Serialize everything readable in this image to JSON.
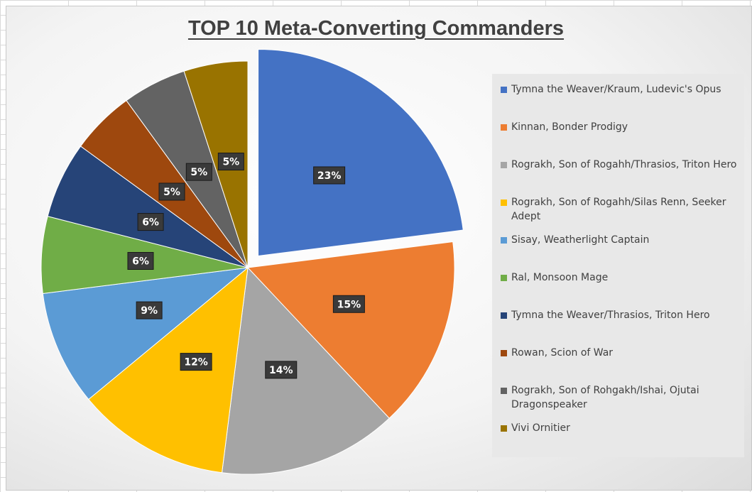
{
  "chart_data": {
    "type": "pie",
    "title": "TOP 10 Meta-Converting Commanders",
    "slices": [
      {
        "label": "Tymna the Weaver/Kraum, Ludevic's Opus",
        "value": 23,
        "display": "23%",
        "color": "#4472C4",
        "exploded": true
      },
      {
        "label": "Kinnan, Bonder Prodigy",
        "value": 15,
        "display": "15%",
        "color": "#ED7D31"
      },
      {
        "label": "Rograkh, Son of Rogahh/Thrasios, Triton Hero",
        "value": 14,
        "display": "14%",
        "color": "#A5A5A5"
      },
      {
        "label": "Rograkh, Son of Rogahh/Silas Renn, Seeker Adept",
        "value": 12,
        "display": "12%",
        "color": "#FFC000"
      },
      {
        "label": "Sisay, Weatherlight Captain",
        "value": 9,
        "display": "9%",
        "color": "#5B9BD5"
      },
      {
        "label": "Ral, Monsoon Mage",
        "value": 6,
        "display": "6%",
        "color": "#70AD47"
      },
      {
        "label": "Tymna the Weaver/Thrasios, Triton Hero",
        "value": 6,
        "display": "6%",
        "color": "#264478"
      },
      {
        "label": "Rowan, Scion of War",
        "value": 5,
        "display": "5%",
        "color": "#9E480E"
      },
      {
        "label": "Rograkh, Son of Rohgakh/Ishai, Ojutai Dragonspeaker",
        "value": 5,
        "display": "5%",
        "color": "#636363"
      },
      {
        "label": "Vivi Ornitier",
        "value": 5,
        "display": "5%",
        "color": "#997300"
      }
    ],
    "legend_position": "right",
    "data_labels": "percent"
  }
}
